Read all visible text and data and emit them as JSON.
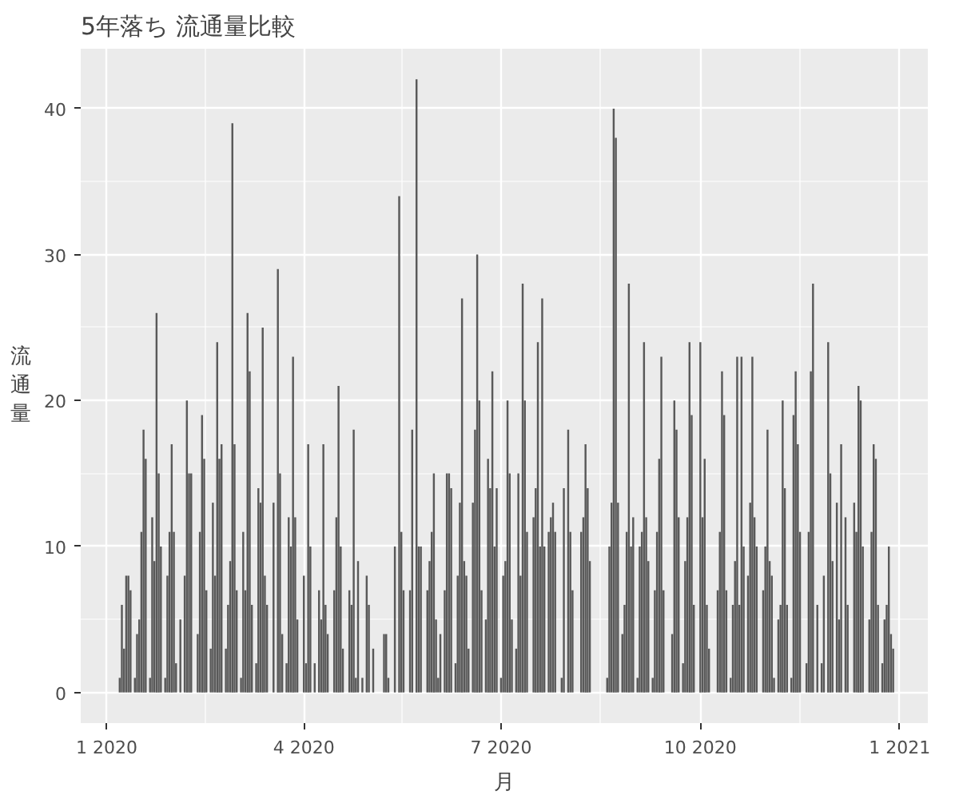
{
  "chart_data": {
    "type": "bar",
    "title": "5年落ち 流通量比較",
    "xlabel": "月",
    "ylabel": "流通量",
    "color": "#595959",
    "grid": true,
    "xlim": [
      "2019-12-20",
      "2021-01-14"
    ],
    "ylim": [
      -2.1,
      44.1
    ],
    "xticks": [
      {
        "value": "2020-01-01",
        "label": "1 2020"
      },
      {
        "value": "2020-04-01",
        "label": "4 2020"
      },
      {
        "value": "2020-07-01",
        "label": "7 2020"
      },
      {
        "value": "2020-10-01",
        "label": "10 2020"
      },
      {
        "value": "2021-01-01",
        "label": "1 2021"
      }
    ],
    "yticks": [
      0,
      10,
      20,
      30,
      40
    ],
    "x": [
      "2020-01-07",
      "2020-01-08",
      "2020-01-09",
      "2020-01-10",
      "2020-01-11",
      "2020-01-12",
      "2020-01-14",
      "2020-01-15",
      "2020-01-16",
      "2020-01-17",
      "2020-01-18",
      "2020-01-19",
      "2020-01-21",
      "2020-01-22",
      "2020-01-23",
      "2020-01-24",
      "2020-01-25",
      "2020-01-26",
      "2020-01-28",
      "2020-01-29",
      "2020-01-30",
      "2020-01-31",
      "2020-02-01",
      "2020-02-02",
      "2020-02-04",
      "2020-02-06",
      "2020-02-07",
      "2020-02-08",
      "2020-02-09",
      "2020-02-12",
      "2020-02-13",
      "2020-02-14",
      "2020-02-15",
      "2020-02-16",
      "2020-02-18",
      "2020-02-19",
      "2020-02-20",
      "2020-02-21",
      "2020-02-22",
      "2020-02-23",
      "2020-02-25",
      "2020-02-26",
      "2020-02-27",
      "2020-02-28",
      "2020-02-29",
      "2020-03-01",
      "2020-03-03",
      "2020-03-04",
      "2020-03-05",
      "2020-03-06",
      "2020-03-07",
      "2020-03-08",
      "2020-03-10",
      "2020-03-11",
      "2020-03-12",
      "2020-03-13",
      "2020-03-14",
      "2020-03-15",
      "2020-03-18",
      "2020-03-20",
      "2020-03-21",
      "2020-03-22",
      "2020-03-24",
      "2020-03-25",
      "2020-03-26",
      "2020-03-27",
      "2020-03-28",
      "2020-03-29",
      "2020-04-01",
      "2020-04-02",
      "2020-04-03",
      "2020-04-04",
      "2020-04-06",
      "2020-04-08",
      "2020-04-09",
      "2020-04-10",
      "2020-04-11",
      "2020-04-12",
      "2020-04-15",
      "2020-04-16",
      "2020-04-17",
      "2020-04-18",
      "2020-04-19",
      "2020-04-22",
      "2020-04-23",
      "2020-04-24",
      "2020-04-25",
      "2020-04-26",
      "2020-04-28",
      "2020-04-30",
      "2020-05-01",
      "2020-05-03",
      "2020-05-08",
      "2020-05-09",
      "2020-05-10",
      "2020-05-13",
      "2020-05-15",
      "2020-05-16",
      "2020-05-17",
      "2020-05-20",
      "2020-05-21",
      "2020-05-23",
      "2020-05-24",
      "2020-05-25",
      "2020-05-28",
      "2020-05-29",
      "2020-05-30",
      "2020-05-31",
      "2020-06-01",
      "2020-06-02",
      "2020-06-03",
      "2020-06-05",
      "2020-06-06",
      "2020-06-07",
      "2020-06-08",
      "2020-06-10",
      "2020-06-11",
      "2020-06-12",
      "2020-06-13",
      "2020-06-14",
      "2020-06-15",
      "2020-06-16",
      "2020-06-18",
      "2020-06-19",
      "2020-06-20",
      "2020-06-21",
      "2020-06-22",
      "2020-06-24",
      "2020-06-25",
      "2020-06-26",
      "2020-06-27",
      "2020-06-28",
      "2020-06-29",
      "2020-07-01",
      "2020-07-02",
      "2020-07-03",
      "2020-07-04",
      "2020-07-05",
      "2020-07-06",
      "2020-07-08",
      "2020-07-09",
      "2020-07-10",
      "2020-07-11",
      "2020-07-12",
      "2020-07-13",
      "2020-07-16",
      "2020-07-17",
      "2020-07-18",
      "2020-07-19",
      "2020-07-20",
      "2020-07-21",
      "2020-07-23",
      "2020-07-24",
      "2020-07-25",
      "2020-07-26",
      "2020-07-29",
      "2020-07-30",
      "2020-08-01",
      "2020-08-02",
      "2020-08-03",
      "2020-08-07",
      "2020-08-08",
      "2020-08-09",
      "2020-08-10",
      "2020-08-11",
      "2020-08-19",
      "2020-08-20",
      "2020-08-21",
      "2020-08-22",
      "2020-08-23",
      "2020-08-24",
      "2020-08-26",
      "2020-08-27",
      "2020-08-28",
      "2020-08-29",
      "2020-08-30",
      "2020-08-31",
      "2020-09-02",
      "2020-09-03",
      "2020-09-04",
      "2020-09-05",
      "2020-09-06",
      "2020-09-07",
      "2020-09-09",
      "2020-09-10",
      "2020-09-11",
      "2020-09-12",
      "2020-09-13",
      "2020-09-14",
      "2020-09-18",
      "2020-09-19",
      "2020-09-20",
      "2020-09-21",
      "2020-09-23",
      "2020-09-24",
      "2020-09-25",
      "2020-09-26",
      "2020-09-27",
      "2020-09-28",
      "2020-10-01",
      "2020-10-02",
      "2020-10-03",
      "2020-10-04",
      "2020-10-05",
      "2020-10-09",
      "2020-10-10",
      "2020-10-11",
      "2020-10-12",
      "2020-10-13",
      "2020-10-15",
      "2020-10-16",
      "2020-10-17",
      "2020-10-18",
      "2020-10-19",
      "2020-10-20",
      "2020-10-21",
      "2020-10-23",
      "2020-10-24",
      "2020-10-25",
      "2020-10-26",
      "2020-10-27",
      "2020-10-30",
      "2020-10-31",
      "2020-11-01",
      "2020-11-02",
      "2020-11-03",
      "2020-11-04",
      "2020-11-06",
      "2020-11-07",
      "2020-11-08",
      "2020-11-09",
      "2020-11-10",
      "2020-11-12",
      "2020-11-13",
      "2020-11-14",
      "2020-11-15",
      "2020-11-16",
      "2020-11-19",
      "2020-11-20",
      "2020-11-21",
      "2020-11-22",
      "2020-11-24",
      "2020-11-26",
      "2020-11-27",
      "2020-11-29",
      "2020-11-30",
      "2020-12-01",
      "2020-12-03",
      "2020-12-04",
      "2020-12-05",
      "2020-12-07",
      "2020-12-08",
      "2020-12-11",
      "2020-12-12",
      "2020-12-13",
      "2020-12-14",
      "2020-12-15",
      "2020-12-18",
      "2020-12-19",
      "2020-12-20",
      "2020-12-21",
      "2020-12-22",
      "2020-12-24",
      "2020-12-25",
      "2020-12-26",
      "2020-12-27",
      "2020-12-28",
      "2020-12-29"
    ],
    "values": [
      1,
      6,
      3,
      8,
      8,
      7,
      1,
      4,
      5,
      11,
      18,
      16,
      1,
      12,
      9,
      26,
      15,
      10,
      1,
      8,
      11,
      17,
      11,
      2,
      5,
      8,
      20,
      15,
      15,
      4,
      11,
      19,
      16,
      7,
      3,
      13,
      8,
      24,
      16,
      17,
      3,
      6,
      9,
      39,
      17,
      7,
      1,
      11,
      7,
      26,
      22,
      6,
      2,
      14,
      13,
      25,
      8,
      6,
      13,
      29,
      15,
      4,
      2,
      12,
      10,
      23,
      12,
      5,
      8,
      2,
      17,
      10,
      2,
      7,
      5,
      17,
      6,
      4,
      7,
      12,
      21,
      10,
      3,
      7,
      6,
      18,
      1,
      9,
      1,
      8,
      6,
      3,
      4,
      4,
      1,
      10,
      34,
      11,
      7,
      7,
      18,
      42,
      10,
      10,
      7,
      9,
      11,
      15,
      5,
      1,
      4,
      7,
      15,
      15,
      14,
      2,
      8,
      13,
      27,
      9,
      8,
      3,
      13,
      18,
      30,
      20,
      7,
      5,
      16,
      14,
      22,
      10,
      14,
      1,
      8,
      9,
      20,
      15,
      5,
      3,
      15,
      8,
      28,
      20,
      11,
      12,
      14,
      24,
      10,
      27,
      10,
      11,
      12,
      13,
      11,
      1,
      14,
      18,
      11,
      7,
      11,
      12,
      17,
      14,
      9,
      1,
      10,
      13,
      40,
      38,
      13,
      4,
      6,
      11,
      28,
      10,
      12,
      1,
      10,
      11,
      24,
      12,
      9,
      1,
      7,
      11,
      16,
      23,
      7,
      4,
      20,
      18,
      12,
      2,
      9,
      12,
      24,
      19,
      6,
      24,
      12,
      16,
      6,
      3,
      7,
      11,
      22,
      19,
      7,
      1,
      6,
      9,
      23,
      6,
      23,
      10,
      8,
      13,
      23,
      12,
      10,
      7,
      10,
      18,
      9,
      8,
      1,
      5,
      6,
      20,
      14,
      6,
      1,
      19,
      22,
      17,
      11,
      2,
      11,
      22,
      28,
      6,
      2,
      8,
      24,
      15,
      9,
      13,
      5,
      17,
      12,
      6,
      13,
      11,
      21,
      20,
      10,
      5,
      11,
      17,
      16,
      6,
      2,
      5,
      6,
      10,
      4,
      3
    ]
  }
}
